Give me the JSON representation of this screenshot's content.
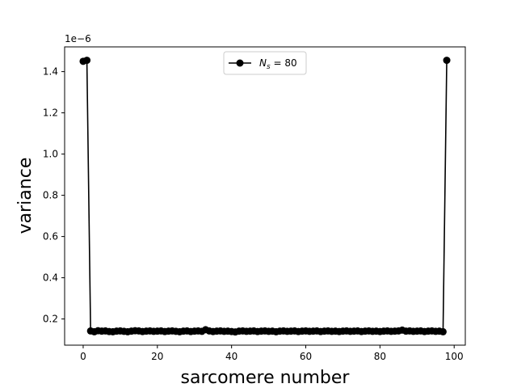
{
  "chart_data": {
    "type": "line",
    "title": "",
    "xlabel": "sarcomere number",
    "ylabel": "variance",
    "offset_label": "1e−6",
    "xlim": [
      -5,
      103
    ],
    "ylim": [
      0.073,
      1.52
    ],
    "x_ticks": [
      0,
      20,
      40,
      60,
      80,
      100
    ],
    "y_ticks": [
      0.2,
      0.4,
      0.6,
      0.8,
      1.0,
      1.2,
      1.4
    ],
    "y_tick_labels": [
      "0.2",
      "0.4",
      "0.6",
      "0.8",
      "1.0",
      "1.2",
      "1.4"
    ],
    "grid": false,
    "legend": {
      "placement": "top-center",
      "entries": [
        {
          "label_base": "N",
          "label_sub": "s",
          "label_rest": " = 80"
        }
      ]
    },
    "colors": {
      "series": "#000000"
    },
    "series": [
      {
        "marker": "circle",
        "x": [
          0,
          1,
          2,
          3,
          4,
          5,
          6,
          7,
          8,
          9,
          10,
          11,
          12,
          13,
          14,
          15,
          16,
          17,
          18,
          19,
          20,
          21,
          22,
          23,
          24,
          25,
          26,
          27,
          28,
          29,
          30,
          31,
          32,
          33,
          34,
          35,
          36,
          37,
          38,
          39,
          40,
          41,
          42,
          43,
          44,
          45,
          46,
          47,
          48,
          49,
          50,
          51,
          52,
          53,
          54,
          55,
          56,
          57,
          58,
          59,
          60,
          61,
          62,
          63,
          64,
          65,
          66,
          67,
          68,
          69,
          70,
          71,
          72,
          73,
          74,
          75,
          76,
          77,
          78,
          79,
          80,
          81,
          82,
          83,
          84,
          85,
          86,
          87,
          88,
          89,
          90,
          91,
          92,
          93,
          94,
          95,
          96,
          97,
          98
        ],
        "y": [
          1.45,
          1.455,
          0.142,
          0.138,
          0.143,
          0.141,
          0.142,
          0.139,
          0.138,
          0.141,
          0.142,
          0.14,
          0.138,
          0.141,
          0.143,
          0.142,
          0.139,
          0.141,
          0.142,
          0.14,
          0.141,
          0.142,
          0.139,
          0.141,
          0.142,
          0.14,
          0.138,
          0.141,
          0.142,
          0.139,
          0.141,
          0.142,
          0.14,
          0.148,
          0.142,
          0.139,
          0.141,
          0.142,
          0.14,
          0.141,
          0.139,
          0.137,
          0.141,
          0.142,
          0.14,
          0.141,
          0.142,
          0.139,
          0.141,
          0.142,
          0.14,
          0.141,
          0.138,
          0.141,
          0.142,
          0.14,
          0.141,
          0.142,
          0.139,
          0.141,
          0.142,
          0.14,
          0.141,
          0.142,
          0.139,
          0.141,
          0.142,
          0.14,
          0.141,
          0.139,
          0.141,
          0.142,
          0.14,
          0.141,
          0.142,
          0.139,
          0.141,
          0.142,
          0.14,
          0.141,
          0.139,
          0.141,
          0.142,
          0.14,
          0.141,
          0.142,
          0.146,
          0.141,
          0.142,
          0.14,
          0.141,
          0.142,
          0.139,
          0.141,
          0.142,
          0.14,
          0.141,
          0.138,
          1.455
        ]
      }
    ]
  }
}
